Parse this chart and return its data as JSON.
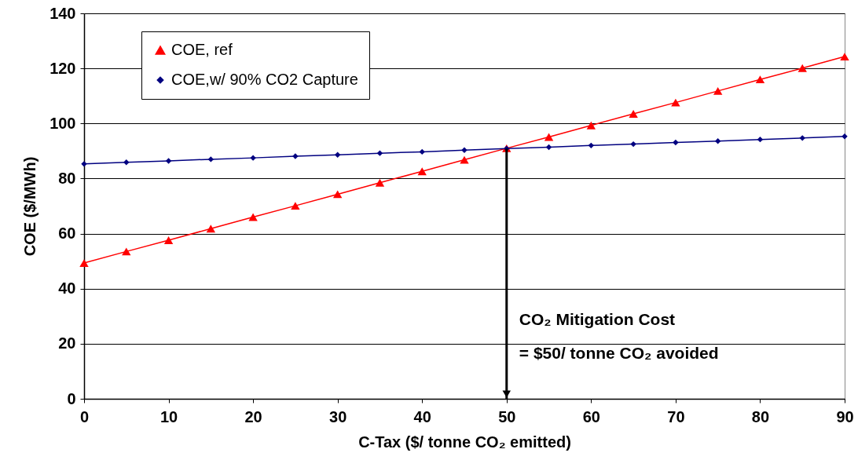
{
  "chart_data": {
    "type": "line",
    "xlabel": "C-Tax ($/ tonne CO₂ emitted)",
    "ylabel": "COE ($/MWh)",
    "x": [
      0,
      5,
      10,
      15,
      20,
      25,
      30,
      35,
      40,
      45,
      50,
      55,
      60,
      65,
      70,
      75,
      80,
      85,
      90
    ],
    "series": [
      {
        "name": "COE, ref",
        "color": "#ff0000",
        "marker": "triangle",
        "values": [
          49.3,
          53.5,
          57.6,
          61.8,
          66,
          70.1,
          74.3,
          78.5,
          82.6,
          86.8,
          91,
          95.1,
          99.3,
          103.5,
          107.6,
          111.8,
          116,
          120.1,
          124.3
        ]
      },
      {
        "name": "COE,w/ 90% CO2 Capture",
        "color": "#000080",
        "marker": "diamond",
        "values": [
          85.3,
          85.9,
          86.4,
          87,
          87.5,
          88.1,
          88.6,
          89.2,
          89.7,
          90.3,
          90.9,
          91.4,
          92,
          92.5,
          93.1,
          93.6,
          94.2,
          94.7,
          95.3
        ]
      }
    ],
    "xlim": [
      0,
      90
    ],
    "xticks": [
      0,
      10,
      20,
      30,
      40,
      50,
      60,
      70,
      80,
      90
    ],
    "ylim": [
      0,
      140
    ],
    "yticks": [
      0,
      20,
      40,
      60,
      80,
      100,
      120,
      140
    ],
    "grid": "y",
    "legend": "top left",
    "line_style": "solid",
    "annotations": [
      "CO₂ Mitigation Cost\n= $50/ tonne CO₂ avoided"
    ]
  }
}
